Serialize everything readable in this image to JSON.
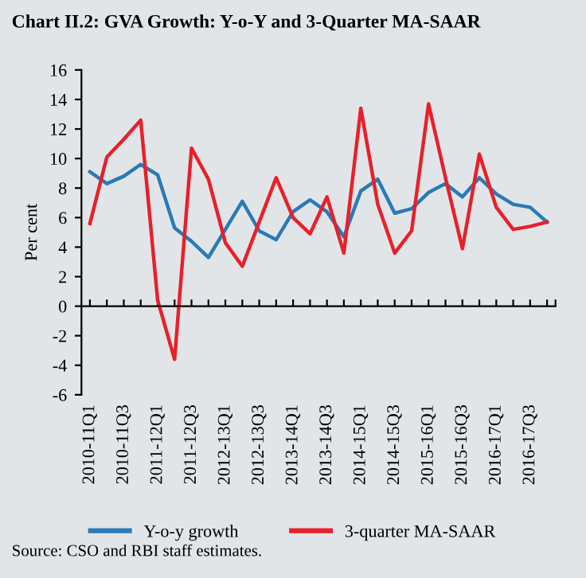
{
  "chart_data": {
    "type": "line",
    "title": "Chart II.2: GVA Growth: Y-o-Y and 3-Quarter MA-SAAR",
    "ylabel": "Per cent",
    "categories": [
      "2010-11Q1",
      null,
      "2010-11Q3",
      null,
      "2011-12Q1",
      null,
      "2011-12Q3",
      null,
      "2012-13Q1",
      null,
      "2012-13Q3",
      null,
      "2013-14Q1",
      null,
      "2013-14Q3",
      null,
      "2014-15Q1",
      null,
      "2014-15Q3",
      null,
      "2015-16Q1",
      null,
      "2015-16Q3",
      null,
      "2016-17Q1",
      null,
      "2016-17Q3",
      null
    ],
    "series": [
      {
        "name": "Y-o-y growth",
        "color": "#2a7ab5",
        "values": [
          9.1,
          8.3,
          8.8,
          9.6,
          8.9,
          5.3,
          4.4,
          3.3,
          5.2,
          7.1,
          5.1,
          4.5,
          6.4,
          7.2,
          6.4,
          4.7,
          7.8,
          8.6,
          6.3,
          6.6,
          7.7,
          8.3,
          7.4,
          8.7,
          7.6,
          6.9,
          6.7,
          5.7
        ]
      },
      {
        "name": "3-quarter MA-SAAR",
        "color": "#e8202a",
        "values": [
          5.6,
          10.1,
          11.3,
          12.6,
          0.4,
          -3.6,
          10.7,
          8.6,
          4.3,
          2.7,
          5.7,
          8.7,
          6.0,
          4.9,
          7.4,
          3.6,
          13.4,
          6.9,
          3.6,
          5.1,
          13.7,
          8.7,
          3.9,
          10.3,
          6.7,
          5.2,
          5.4,
          5.7
        ]
      }
    ],
    "ylim": [
      -6,
      16
    ],
    "yticks": [
      -6,
      -4,
      -2,
      0,
      2,
      4,
      6,
      8,
      10,
      12,
      14,
      16
    ],
    "legend": "bottom",
    "marker": "none",
    "line_style": "solid",
    "annotations": [
      "Source: CSO and RBI staff estimates."
    ]
  }
}
